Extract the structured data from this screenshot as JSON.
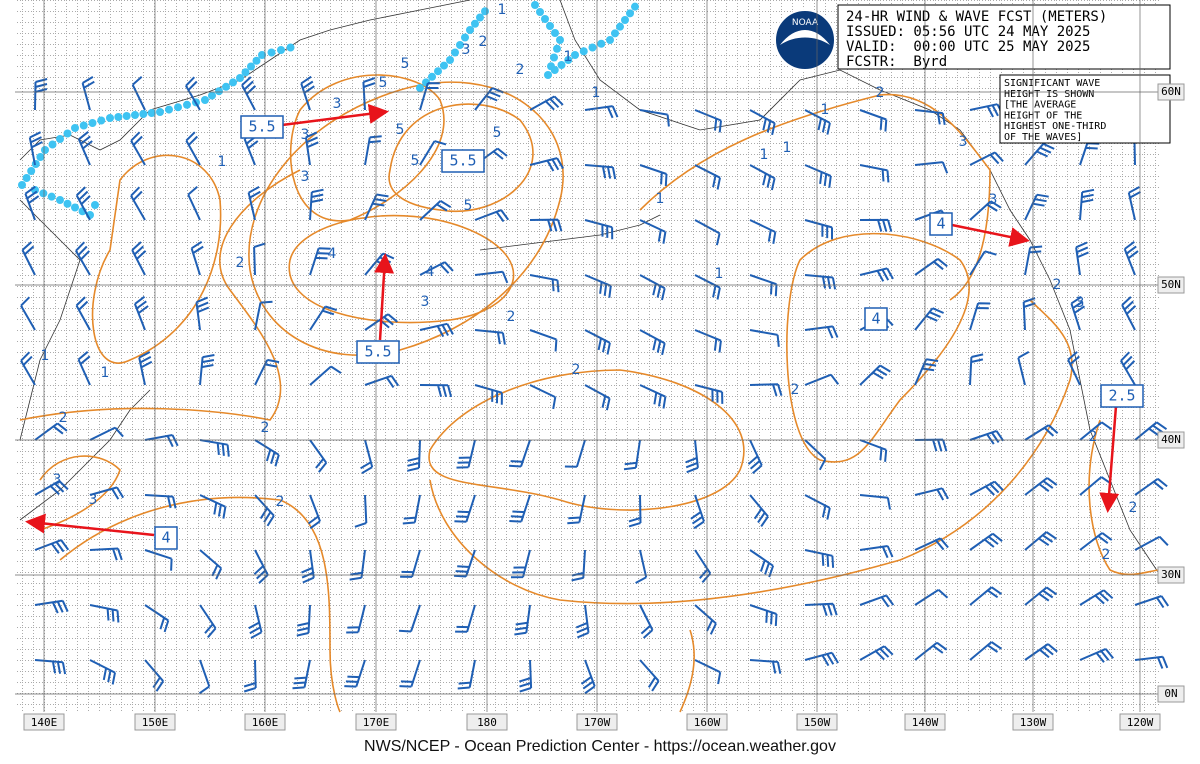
{
  "header": {
    "lines": [
      "24-HR WIND & WAVE FCST (METERS)",
      "ISSUED: 05:56 UTC 24 MAY 2025",
      "VALID:  00:00 UTC 25 MAY 2025",
      "FCSTR:  Byrd"
    ]
  },
  "note": {
    "lines": [
      "SIGNIFICANT WAVE",
      "HEIGHT IS SHOWN",
      "[THE AVERAGE",
      "HEIGHT OF THE",
      "HIGHEST ONE-THIRD",
      "OF THE WAVES]"
    ]
  },
  "logo": "NOAA",
  "latitude_labels": [
    "60N",
    "50N",
    "40N",
    "30N",
    "0N"
  ],
  "longitude_labels": [
    "140E",
    "150E",
    "160E",
    "170E",
    "180",
    "170W",
    "160W",
    "150W",
    "140W",
    "130W",
    "120W"
  ],
  "boxed_labels": [
    "5.5",
    "5.5",
    "5.5",
    "4",
    "4",
    "2.5",
    "4"
  ],
  "contour_labels": [
    "1",
    "1",
    "1",
    "2",
    "2",
    "2",
    "2",
    "3",
    "3",
    "3",
    "3",
    "3",
    "4",
    "5",
    "5",
    "5",
    "5",
    "5",
    "5",
    "4",
    "3",
    "2",
    "2",
    "1",
    "1",
    "1",
    "1",
    "1",
    "2",
    "3",
    "3",
    "2",
    "3",
    "2",
    "2",
    "2",
    "2",
    "3",
    "2",
    "2",
    "1",
    "1",
    "1"
  ],
  "footer": "NWS/NCEP - Ocean Prediction Center - https://ocean.weather.gov"
}
